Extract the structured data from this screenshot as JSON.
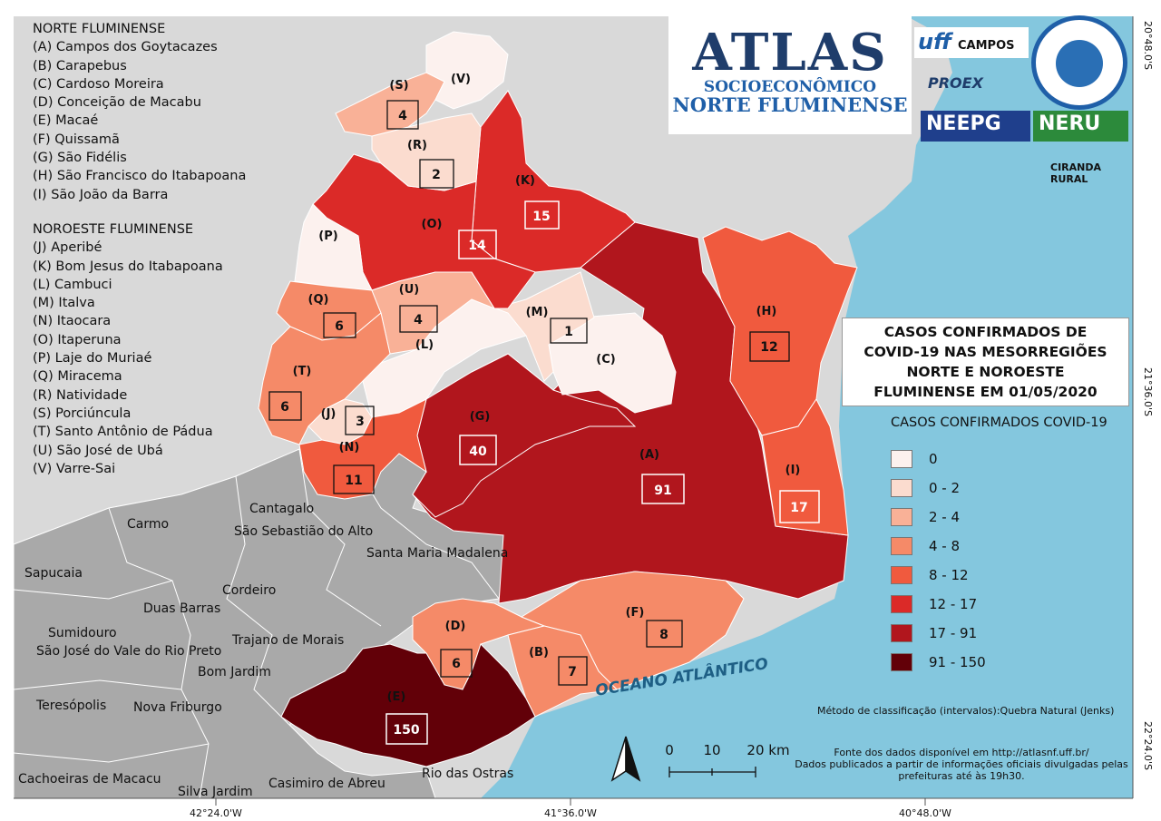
{
  "legend_norte": {
    "heading": "NORTE FLUMINENSE",
    "items": [
      "(A) Campos dos Goytacazes",
      "(B) Carapebus",
      "(C) Cardoso Moreira",
      "(D) Conceição de Macabu",
      "(E) Macaé",
      "(F) Quissamã",
      "(G) São Fidélis",
      "(H) São Francisco do Itabapoana",
      "(I) São João da Barra"
    ]
  },
  "legend_noroeste": {
    "heading": "NOROESTE FLUMINENSE",
    "items": [
      "(J) Aperibé",
      "(K) Bom Jesus do Itabapoana",
      "(L) Cambuci",
      "(M) Italva",
      "(N) Itaocara",
      "(O) Itaperuna",
      "(P) Laje do Muriaé",
      "(Q) Miracema",
      "(R) Natividade",
      "(S) Porciúncula",
      "(T) Santo Antônio de Pádua",
      "(U) São José de Ubá",
      "(V) Varre-Sai"
    ]
  },
  "atlas": {
    "line1": "ATLAS",
    "line2": "SOCIOECONÔMICO",
    "line3": "NORTE FLUMINENSE"
  },
  "logos": {
    "uff": "uff",
    "campos": "CAMPOS",
    "proex": "PROEX",
    "neepg": "NEEPG",
    "neru": "NERU",
    "ciranda": "CIRANDA RURAL"
  },
  "title": {
    "line1": "CASOS CONFIRMADOS DE",
    "line2": "COVID-19 NAS MESORREGIÕES",
    "line3": "NORTE E NOROESTE",
    "line4": "FLUMINENSE EM 01/05/2020"
  },
  "class_legend": {
    "title": "CASOS CONFIRMADOS COVID-19",
    "classes": [
      {
        "label": "0",
        "color": "#fcf1ee"
      },
      {
        "label": "0 - 2",
        "color": "#fbdccf"
      },
      {
        "label": "2 - 4",
        "color": "#f9b197"
      },
      {
        "label": "4 - 8",
        "color": "#f58a68"
      },
      {
        "label": "8 - 12",
        "color": "#f05a3e"
      },
      {
        "label": "12 - 17",
        "color": "#db2a28"
      },
      {
        "label": "17 - 91",
        "color": "#b1161d"
      },
      {
        "label": "91 - 150",
        "color": "#620008"
      }
    ]
  },
  "municipalities": [
    {
      "letter": "(A)",
      "cases": "91"
    },
    {
      "letter": "(B)",
      "cases": "7"
    },
    {
      "letter": "(C)",
      "cases": ""
    },
    {
      "letter": "(D)",
      "cases": "6"
    },
    {
      "letter": "(E)",
      "cases": "150"
    },
    {
      "letter": "(F)",
      "cases": "8"
    },
    {
      "letter": "(G)",
      "cases": "40"
    },
    {
      "letter": "(H)",
      "cases": "12"
    },
    {
      "letter": "(I)",
      "cases": "17"
    },
    {
      "letter": "(J)",
      "cases": "3"
    },
    {
      "letter": "(K)",
      "cases": "15"
    },
    {
      "letter": "(L)",
      "cases": ""
    },
    {
      "letter": "(M)",
      "cases": "1"
    },
    {
      "letter": "(N)",
      "cases": "11"
    },
    {
      "letter": "(O)",
      "cases": "14"
    },
    {
      "letter": "(P)",
      "cases": ""
    },
    {
      "letter": "(Q)",
      "cases": "6"
    },
    {
      "letter": "(R)",
      "cases": "2"
    },
    {
      "letter": "(S)",
      "cases": "4"
    },
    {
      "letter": "(T)",
      "cases": "6"
    },
    {
      "letter": "(U)",
      "cases": "4"
    },
    {
      "letter": "(V)",
      "cases": ""
    }
  ],
  "neighbors": [
    "Cantagalo",
    "São Sebastião do Alto",
    "Carmo",
    "Santa Maria Madalena",
    "Sapucaia",
    "Duas Barras",
    "Cordeiro",
    "Sumidouro",
    "São José do Vale do Rio Preto",
    "Trajano de Morais",
    "Bom Jardim",
    "Teresópolis",
    "Nova Friburgo",
    "Cachoeiras de Macacu",
    "Silva Jardim",
    "Casimiro de Abreu",
    "Rio das Ostras"
  ],
  "ocean_label": "OCEANO ATLÂNTICO",
  "scale": {
    "t0": "0",
    "t1": "10",
    "t2": "20 km"
  },
  "method": "Método de classificação (intervalos):Quebra Natural (Jenks)",
  "source": {
    "line1": "Fonte dos dados disponível em http://atlasnf.uff.br/",
    "line2": "Dados publicados a partir de informações oficiais divulgadas pelas",
    "line3": "prefeituras até às 19h30."
  },
  "graticule": {
    "lat_top": "20°48.0'S",
    "lat_mid": "21°36.0'S",
    "lat_bot": "22°24.0'S",
    "lon_left": "42°24.0'W",
    "lon_mid": "41°36.0'W",
    "lon_right": "40°48.0'W"
  }
}
